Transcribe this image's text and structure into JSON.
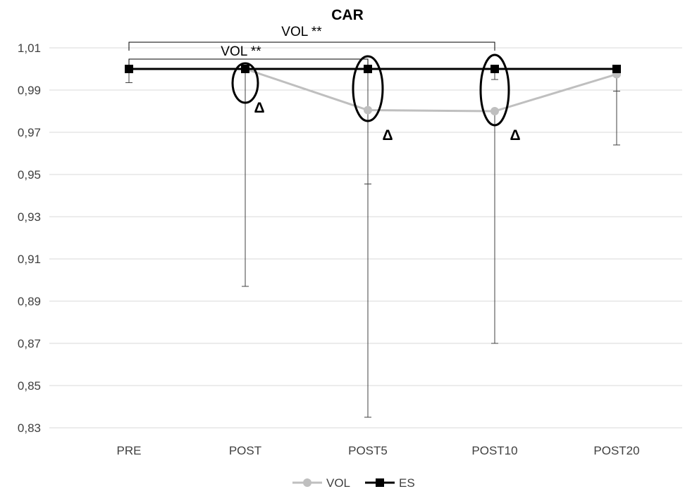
{
  "chart_data": {
    "type": "line",
    "title": "CAR",
    "xlabel": "",
    "ylabel": "",
    "categories": [
      "PRE",
      "POST",
      "POST5",
      "POST10",
      "POST20"
    ],
    "ylim": [
      0.83,
      1.01
    ],
    "yticks": [
      0.83,
      0.85,
      0.87,
      0.89,
      0.91,
      0.93,
      0.95,
      0.97,
      0.99,
      1.01
    ],
    "ytick_labels": [
      "0,83",
      "0,85",
      "0,87",
      "0,89",
      "0,91",
      "0,93",
      "0,95",
      "0,97",
      "0,99",
      "1,01"
    ],
    "grid": "horizontal",
    "legend_position": "bottom-center",
    "series": [
      {
        "name": "VOL",
        "color": "#bfbfbf",
        "marker": "circle",
        "values": [
          1.0,
          1.0,
          0.9805,
          0.98,
          0.9975
        ],
        "error_low": [
          null,
          0.897,
          0.835,
          0.87,
          0.964
        ],
        "error_high": [
          null,
          null,
          null,
          null,
          null
        ]
      },
      {
        "name": "ES",
        "color": "#000000",
        "marker": "square",
        "values": [
          1.0,
          1.0,
          1.0,
          1.0,
          1.0
        ],
        "error_low": [
          0.9935,
          null,
          0.9455,
          null,
          0.9895
        ],
        "error_high": [
          null,
          null,
          null,
          null,
          null
        ],
        "error_low_extra": [
          null,
          null,
          null,
          0.995,
          null
        ]
      }
    ],
    "annotations": {
      "brackets": [
        {
          "label": "VOL **",
          "from": "PRE",
          "to": "POST10",
          "level": "upper"
        },
        {
          "label": "VOL **",
          "from": "PRE",
          "to": "POST5",
          "level": "lower"
        }
      ],
      "circled_points": [
        "POST",
        "POST5",
        "POST10"
      ],
      "delta_symbol": "Δ",
      "delta_at": [
        "POST",
        "POST5",
        "POST10"
      ]
    }
  }
}
